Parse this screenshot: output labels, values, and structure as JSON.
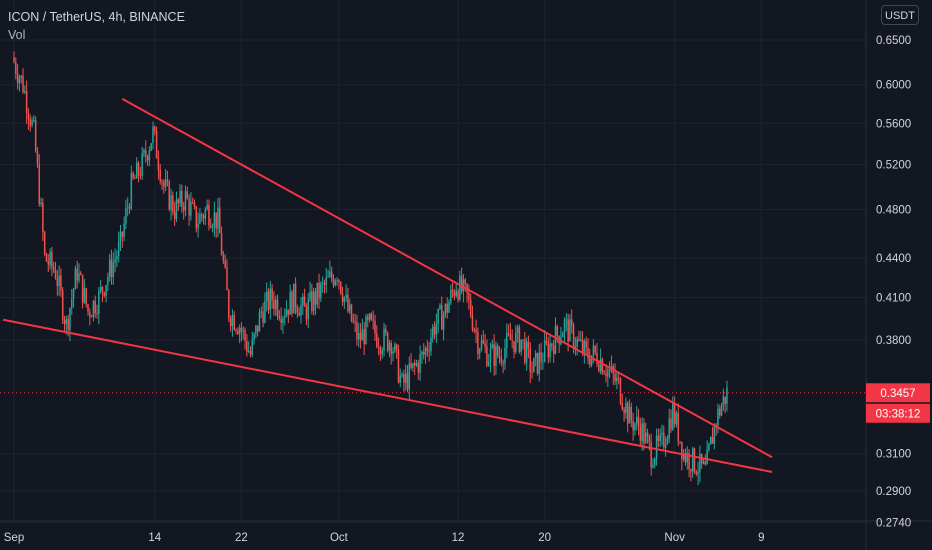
{
  "legend": {
    "symbol": "ICON / TetherUS, 4h, BINANCE",
    "vol": "Vol"
  },
  "price_axis": {
    "currency": "USDT"
  },
  "last_price": {
    "value": "0.3457",
    "countdown": "03:38:12",
    "color": "#f23645"
  },
  "colors": {
    "up": "#26a69a",
    "down": "#ef5350",
    "trendline": "#f23645",
    "background": "#131722",
    "grid": "#1f2330"
  },
  "chart_data": {
    "type": "candlestick",
    "title": "",
    "y_scale": "log",
    "y_ticks": [
      "0.6500",
      "0.6000",
      "0.5600",
      "0.5200",
      "0.4800",
      "0.4400",
      "0.4100",
      "0.3800",
      "0.3100",
      "0.2900",
      "0.2740"
    ],
    "x_ticks": [
      "Sep",
      "14",
      "22",
      "Oct",
      "12",
      "20",
      "Nov",
      "9"
    ],
    "ylim": [
      0.268,
      0.69
    ],
    "grid": true,
    "trendlines": [
      {
        "from": [
          "Sep 11",
          0.585
        ],
        "to": [
          "Nov 10",
          0.308
        ]
      },
      {
        "from": [
          "Aug 31",
          0.394
        ],
        "to": [
          "Nov 10",
          0.3
        ]
      }
    ],
    "price_path": [
      [
        "Sep 1",
        0.63
      ],
      [
        "Sep 2",
        0.6
      ],
      [
        "Sep 3",
        0.55
      ],
      [
        "Sep 4",
        0.44
      ],
      [
        "Sep 5",
        0.43
      ],
      [
        "Sep 6",
        0.39
      ],
      [
        "Sep 7",
        0.43
      ],
      [
        "Sep 8",
        0.4
      ],
      [
        "Sep 9",
        0.41
      ],
      [
        "Sep 10",
        0.43
      ],
      [
        "Sep 11",
        0.45
      ],
      [
        "Sep 12",
        0.5
      ],
      [
        "Sep 13",
        0.52
      ],
      [
        "Sep 14",
        0.55
      ],
      [
        "Sep 15",
        0.5
      ],
      [
        "Sep 16",
        0.48
      ],
      [
        "Sep 17",
        0.49
      ],
      [
        "Sep 18",
        0.47
      ],
      [
        "Sep 19",
        0.48
      ],
      [
        "Sep 20",
        0.47
      ],
      [
        "Sep 21",
        0.4
      ],
      [
        "Sep 22",
        0.39
      ],
      [
        "Sep 23",
        0.37
      ],
      [
        "Sep 24",
        0.4
      ],
      [
        "Sep 25",
        0.41
      ],
      [
        "Sep 26",
        0.4
      ],
      [
        "Sep 27",
        0.41
      ],
      [
        "Sep 28",
        0.4
      ],
      [
        "Sep 29",
        0.41
      ],
      [
        "Sep 30",
        0.42
      ],
      [
        "Oct 1",
        0.43
      ],
      [
        "Oct 2",
        0.4
      ],
      [
        "Oct 3",
        0.38
      ],
      [
        "Oct 4",
        0.39
      ],
      [
        "Oct 5",
        0.38
      ],
      [
        "Oct 6",
        0.38
      ],
      [
        "Oct 7",
        0.35
      ],
      [
        "Oct 8",
        0.36
      ],
      [
        "Oct 9",
        0.37
      ],
      [
        "Oct 10",
        0.39
      ],
      [
        "Oct 11",
        0.4
      ],
      [
        "Oct 12",
        0.42
      ],
      [
        "Oct 13",
        0.41
      ],
      [
        "Oct 14",
        0.38
      ],
      [
        "Oct 15",
        0.37
      ],
      [
        "Oct 16",
        0.37
      ],
      [
        "Oct 17",
        0.38
      ],
      [
        "Oct 18",
        0.38
      ],
      [
        "Oct 19",
        0.36
      ],
      [
        "Oct 20",
        0.37
      ],
      [
        "Oct 21",
        0.38
      ],
      [
        "Oct 22",
        0.39
      ],
      [
        "Oct 23",
        0.38
      ],
      [
        "Oct 24",
        0.37
      ],
      [
        "Oct 25",
        0.37
      ],
      [
        "Oct 26",
        0.36
      ],
      [
        "Oct 27",
        0.35
      ],
      [
        "Oct 28",
        0.33
      ],
      [
        "Oct 29",
        0.325
      ],
      [
        "Oct 30",
        0.31
      ],
      [
        "Oct 31",
        0.315
      ],
      [
        "Nov 1",
        0.335
      ],
      [
        "Nov 2",
        0.31
      ],
      [
        "Nov 3",
        0.305
      ],
      [
        "Nov 4",
        0.3
      ],
      [
        "Nov 5",
        0.33
      ],
      [
        "Nov 6",
        0.3457
      ]
    ]
  }
}
